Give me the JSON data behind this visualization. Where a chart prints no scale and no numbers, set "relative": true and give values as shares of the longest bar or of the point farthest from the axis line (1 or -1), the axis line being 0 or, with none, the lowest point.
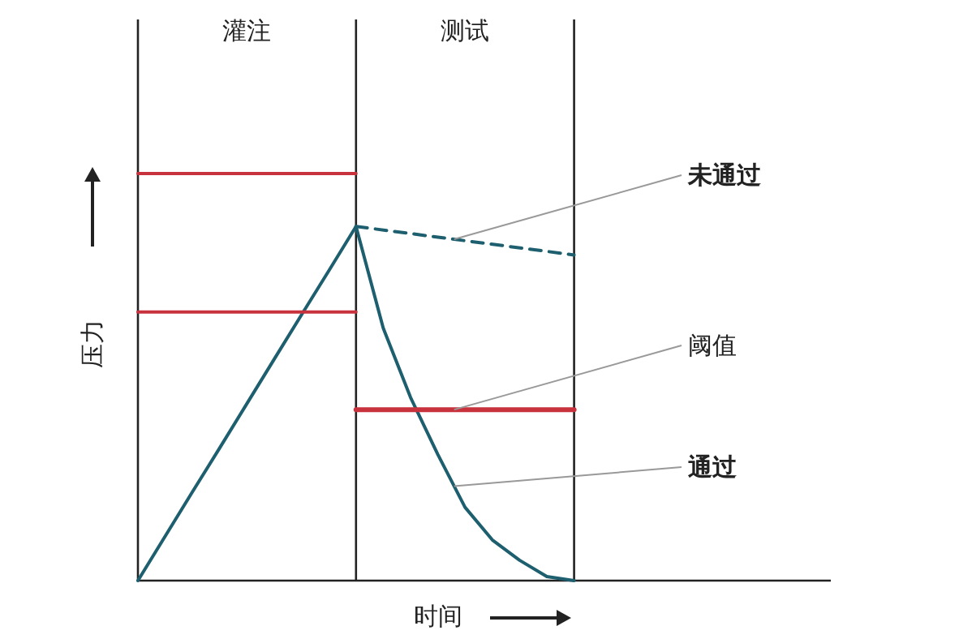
{
  "chart_data": {
    "type": "line",
    "relative": true,
    "xlabel": "时间",
    "ylabel": "压力",
    "categories": [
      null,
      null,
      null,
      null,
      null,
      null,
      null,
      null,
      null,
      null,
      null,
      null,
      null,
      null,
      null,
      null,
      null,
      null,
      null,
      null,
      null,
      null,
      null,
      null,
      null,
      null
    ],
    "series": [
      {
        "color": "#1d5f6e",
        "line_style": "solid",
        "values": [
          0,
          0.109,
          0.218,
          0.326,
          0.435,
          0.544,
          0.653,
          0.761,
          0.87,
          null,
          null,
          null,
          null,
          null,
          null,
          null,
          null,
          null,
          null,
          null,
          null,
          null,
          null,
          null,
          null,
          null
        ]
      },
      {
        "name": "通过",
        "color": "#1d5f6e",
        "line_style": "solid",
        "values": [
          null,
          null,
          null,
          null,
          null,
          null,
          null,
          null,
          0.87,
          0.62,
          0.45,
          0.31,
          0.18,
          0.1,
          0.05,
          0.01,
          0,
          null,
          null,
          null,
          null,
          null,
          null,
          null,
          null,
          null
        ]
      },
      {
        "name": "未通过",
        "color": "#1d5f6e",
        "line_style": "dashed",
        "values": [
          null,
          null,
          null,
          null,
          null,
          null,
          null,
          null,
          0.87,
          null,
          null,
          null,
          null,
          null,
          null,
          null,
          0.8,
          null,
          null,
          null,
          null,
          null,
          null,
          null,
          null,
          null
        ]
      },
      {
        "color": "#c8323c",
        "line_style": "solid",
        "values": [
          1,
          1,
          1,
          1,
          1,
          1,
          1,
          1,
          1,
          null,
          null,
          null,
          null,
          null,
          null,
          null,
          null,
          null,
          null,
          null,
          null,
          null,
          null,
          null,
          null,
          null
        ]
      },
      {
        "color": "#c8323c",
        "line_style": "solid",
        "values": [
          0.66,
          0.66,
          0.66,
          0.66,
          0.66,
          0.66,
          0.66,
          0.66,
          0.66,
          null,
          null,
          null,
          null,
          null,
          null,
          null,
          null,
          null,
          null,
          null,
          null,
          null,
          null,
          null,
          null,
          null
        ]
      },
      {
        "name": "阈值",
        "color": "#c8323c",
        "line_style": "solid",
        "values": [
          null,
          null,
          null,
          null,
          null,
          null,
          null,
          null,
          0.42,
          0.42,
          0.42,
          0.42,
          0.42,
          0.42,
          0.42,
          0.42,
          0.42,
          null,
          null,
          null,
          null,
          null,
          null,
          null,
          null,
          null
        ]
      }
    ],
    "annotations": [
      "灌注",
      "测试"
    ],
    "legend": false
  }
}
